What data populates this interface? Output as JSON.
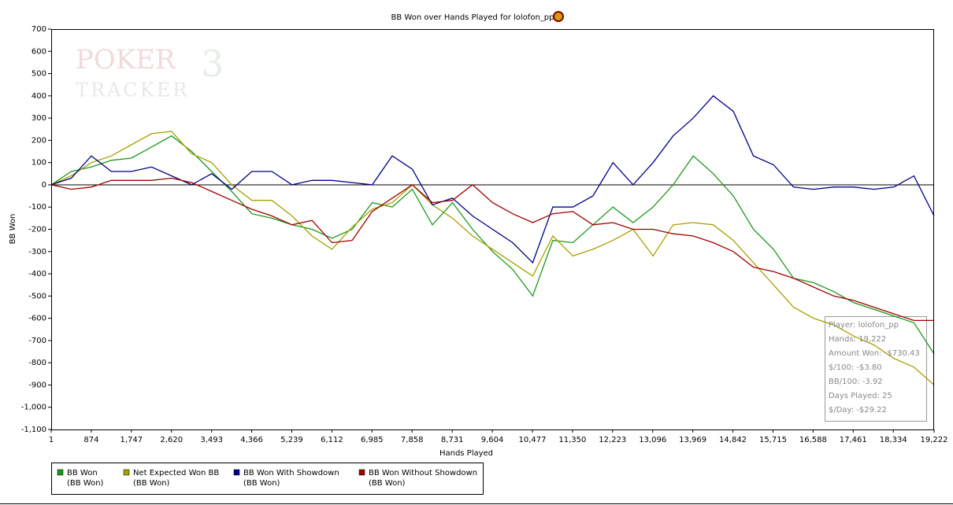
{
  "chart_data": {
    "type": "line",
    "title": "BB Won over Hands Played for lolofon_pp",
    "watermark": [
      "POKER",
      "3",
      "TRACKER"
    ],
    "xlabel": "Hands Played",
    "ylabel": "BB Won",
    "grid": false,
    "xlim": [
      1,
      19222
    ],
    "ylim": [
      -1100,
      700
    ],
    "xticks": [
      1,
      874,
      {
        "value": 1747,
        "label": "1,747"
      },
      {
        "value": 2620,
        "label": "2,620"
      },
      {
        "value": 3493,
        "label": "3,493"
      },
      {
        "value": 4366,
        "label": "4,366"
      },
      {
        "value": 5239,
        "label": "5,239"
      },
      {
        "value": 6112,
        "label": "6,112"
      },
      {
        "value": 6985,
        "label": "6,985"
      },
      {
        "value": 7858,
        "label": "7,858"
      },
      {
        "value": 8731,
        "label": "8,731"
      },
      {
        "value": 9604,
        "label": "9,604"
      },
      {
        "value": 10477,
        "label": "10,477"
      },
      {
        "value": 11350,
        "label": "11,350"
      },
      {
        "value": 12223,
        "label": "12,223"
      },
      {
        "value": 13096,
        "label": "13,096"
      },
      {
        "value": 13969,
        "label": "13,969"
      },
      {
        "value": 14842,
        "label": "14,842"
      },
      {
        "value": 15715,
        "label": "15,715"
      },
      {
        "value": 16588,
        "label": "16,588"
      },
      {
        "value": 17461,
        "label": "17,461"
      },
      {
        "value": 18334,
        "label": "18,334"
      },
      {
        "value": 19222,
        "label": "19,222"
      }
    ],
    "yticks": [
      700,
      600,
      500,
      400,
      300,
      200,
      100,
      0,
      -100,
      -200,
      -300,
      -400,
      -500,
      -600,
      -700,
      -800,
      -900,
      {
        "value": -1000,
        "label": "-1,000"
      },
      {
        "value": -1100,
        "label": "-1,100"
      }
    ],
    "x": [
      1,
      438,
      875,
      1311,
      1748,
      2185,
      2622,
      3058,
      3495,
      3932,
      4369,
      4806,
      5242,
      5679,
      6116,
      6553,
      6990,
      7426,
      7863,
      8300,
      8737,
      9174,
      9610,
      10047,
      10484,
      10921,
      11358,
      11794,
      12231,
      12668,
      13105,
      13542,
      13978,
      14415,
      14852,
      15289,
      15726,
      16162,
      16599,
      17036,
      17473,
      17910,
      18346,
      18783,
      19222
    ],
    "series": [
      {
        "name": "BB Won",
        "group": "(BB Won)",
        "color": "#1a9a1a",
        "values": [
          0,
          60,
          80,
          110,
          120,
          170,
          220,
          150,
          60,
          -30,
          -130,
          -150,
          -180,
          -200,
          -240,
          -200,
          -80,
          -100,
          -20,
          -180,
          -80,
          -200,
          -300,
          -380,
          -500,
          -250,
          -260,
          -180,
          -100,
          -170,
          -100,
          0,
          130,
          50,
          -50,
          -200,
          -290,
          -420,
          -440,
          -480,
          -530,
          -560,
          -590,
          -620,
          -760
        ]
      },
      {
        "name": "Net Expected Won BB",
        "group": "(BB Won)",
        "color": "#a8a000",
        "values": [
          0,
          40,
          100,
          130,
          180,
          230,
          240,
          140,
          100,
          0,
          -70,
          -70,
          -140,
          -230,
          -290,
          -190,
          -110,
          -80,
          0,
          -90,
          -150,
          -230,
          -290,
          -350,
          -410,
          -230,
          -320,
          -290,
          -250,
          -200,
          -320,
          -180,
          -170,
          -180,
          -250,
          -350,
          -450,
          -550,
          -600,
          -630,
          -680,
          -720,
          -780,
          -820,
          -900
        ]
      },
      {
        "name": "BB Won With Showdown",
        "group": "(BB Won)",
        "color": "#00008b",
        "values": [
          0,
          30,
          130,
          60,
          60,
          80,
          40,
          0,
          50,
          -20,
          60,
          60,
          0,
          20,
          20,
          10,
          0,
          130,
          70,
          -90,
          -60,
          -140,
          -200,
          -260,
          -350,
          -100,
          -100,
          -50,
          100,
          0,
          100,
          220,
          300,
          400,
          330,
          130,
          90,
          -10,
          -20,
          -10,
          -10,
          -20,
          -10,
          40,
          -140
        ]
      },
      {
        "name": "BB Won Without Showdown",
        "group": "(BB Won)",
        "color": "#a00000",
        "values": [
          0,
          -20,
          -10,
          20,
          20,
          20,
          30,
          10,
          -30,
          -70,
          -110,
          -140,
          -180,
          -160,
          -260,
          -250,
          -120,
          -60,
          0,
          -80,
          -70,
          0,
          -80,
          -130,
          -170,
          -130,
          -120,
          -180,
          -170,
          -200,
          -200,
          -220,
          -230,
          -260,
          -300,
          -370,
          -390,
          -420,
          -460,
          -500,
          -520,
          -550,
          -580,
          -610,
          -610
        ]
      }
    ],
    "stats_box": [
      "Player: lolofon_pp",
      "Hands: 19,222",
      "Amount Won: -$730.43",
      "$/100: -$3.80",
      "BB/100: -3.92",
      "Days Played: 25",
      "$/Day: -$29.22"
    ]
  }
}
